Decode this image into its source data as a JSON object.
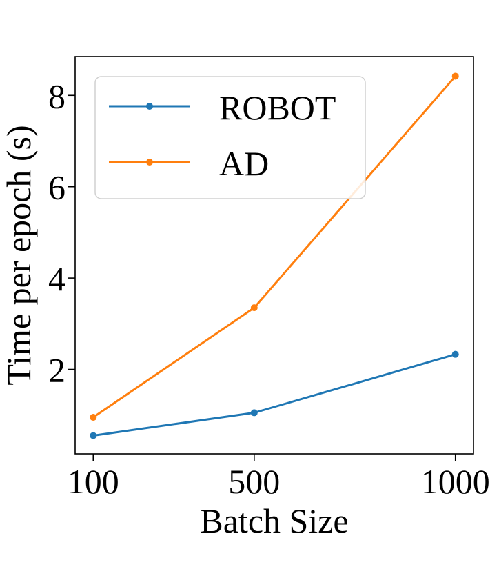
{
  "chart_data": {
    "type": "line",
    "title": "",
    "xlabel": "Batch Size",
    "ylabel": "Time per epoch (s)",
    "x": [
      100,
      500,
      1000
    ],
    "x_tick_labels": [
      "100",
      "500",
      "1000"
    ],
    "y_ticks": [
      2,
      4,
      6,
      8
    ],
    "y_tick_labels": [
      "2",
      "4",
      "6",
      "8"
    ],
    "xlim": [
      55,
      1045
    ],
    "ylim": [
      0.15,
      8.85
    ],
    "grid": false,
    "legend_position": "top-left",
    "series": [
      {
        "name": "ROBOT",
        "color": "#1f77b4",
        "values": [
          0.55,
          1.05,
          2.33
        ]
      },
      {
        "name": "AD",
        "color": "#ff7f0e",
        "values": [
          0.95,
          3.35,
          8.42
        ]
      }
    ]
  }
}
